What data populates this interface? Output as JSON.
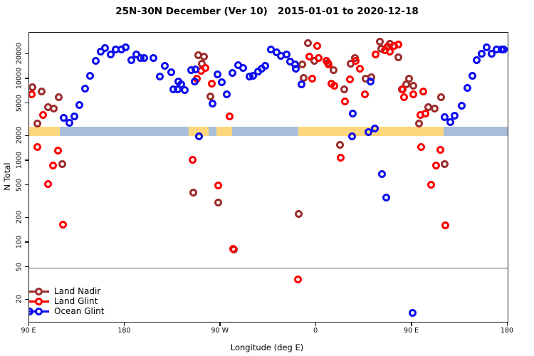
{
  "title": "25N-30N December (Ver 10)   2015-01-01 to 2020-12-18",
  "chart_data": {
    "type": "scatter",
    "title": "25N-30N December (Ver 10)   2015-01-01 to 2020-12-18",
    "xlabel": "Longitude (deg E)",
    "ylabel": "N Total",
    "x_axis": {
      "range": [
        90,
        540
      ],
      "note": "longitude wraps eastward: 90E -> 180 -> 90W -> 0 -> 90E -> 180",
      "ticks": [
        [
          90,
          "90 E"
        ],
        [
          180,
          "180"
        ],
        [
          270,
          "90 W"
        ],
        [
          360,
          "0"
        ],
        [
          450,
          "90 E"
        ],
        [
          540,
          "180"
        ]
      ]
    },
    "y_axis": {
      "scale": "log10",
      "range": [
        10,
        37000
      ],
      "ticks": [
        20000,
        10000,
        5000,
        2000,
        1000,
        500,
        200,
        100,
        50,
        20
      ]
    },
    "reference_line_at": 50,
    "land_ocean_band": {
      "y_level": 2000,
      "land_color": "#FCD77E",
      "ocean_color": "#A9BED9",
      "segments": [
        {
          "from": 90,
          "to": 119,
          "type": "land"
        },
        {
          "from": 119,
          "to": 240,
          "type": "ocean"
        },
        {
          "from": 240,
          "to": 259,
          "type": "land"
        },
        {
          "from": 259,
          "to": 266,
          "type": "ocean"
        },
        {
          "from": 266,
          "to": 281,
          "type": "land"
        },
        {
          "from": 281,
          "to": 343,
          "type": "ocean"
        },
        {
          "from": 343,
          "to": 480,
          "type": "land"
        },
        {
          "from": 480,
          "to": 540,
          "type": "ocean"
        }
      ]
    },
    "series": [
      {
        "name": "Land Nadir",
        "color": "#9C2C2C",
        "points": [
          [
            93,
            8000
          ],
          [
            97.5,
            2870
          ],
          [
            102,
            7000
          ],
          [
            108,
            4490
          ],
          [
            113,
            4400
          ],
          [
            118,
            5980
          ],
          [
            121,
            918
          ],
          [
            244.5,
            414
          ],
          [
            249,
            19400
          ],
          [
            252.5,
            15500
          ],
          [
            254.5,
            18900
          ],
          [
            260.5,
            6150
          ],
          [
            268,
            311
          ],
          [
            282.5,
            82
          ],
          [
            343.5,
            227
          ],
          [
            346.5,
            15200
          ],
          [
            348,
            10400
          ],
          [
            352,
            27700
          ],
          [
            358,
            16700
          ],
          [
            371,
            15600
          ],
          [
            376.5,
            12800
          ],
          [
            382.5,
            1570
          ],
          [
            386.5,
            7500
          ],
          [
            392.5,
            15400
          ],
          [
            396.5,
            18200
          ],
          [
            406.5,
            10200
          ],
          [
            411.5,
            10500
          ],
          [
            419.5,
            28500
          ],
          [
            421,
            23300
          ],
          [
            429.5,
            27200
          ],
          [
            437,
            18600
          ],
          [
            440.5,
            7500
          ],
          [
            444.5,
            8570
          ],
          [
            447,
            10200
          ],
          [
            451.5,
            8350
          ],
          [
            456.5,
            2870
          ],
          [
            465.5,
            4490
          ],
          [
            471.5,
            4400
          ],
          [
            477.5,
            5980
          ],
          [
            481,
            918
          ]
        ]
      },
      {
        "name": "Land Glint",
        "color": "#FF0000",
        "points": [
          [
            92.5,
            6560
          ],
          [
            97.5,
            1470
          ],
          [
            103,
            3670
          ],
          [
            107.5,
            520
          ],
          [
            112.5,
            875
          ],
          [
            117,
            1350
          ],
          [
            121.5,
            165
          ],
          [
            243.5,
            1035
          ],
          [
            248,
            10200
          ],
          [
            251.5,
            12500
          ],
          [
            256,
            13700
          ],
          [
            262,
            8750
          ],
          [
            268,
            497
          ],
          [
            278.5,
            3510
          ],
          [
            282,
            85
          ],
          [
            343,
            36
          ],
          [
            353.5,
            18800
          ],
          [
            356.5,
            10200
          ],
          [
            361,
            25500
          ],
          [
            362.5,
            17900
          ],
          [
            369.5,
            16500
          ],
          [
            371.5,
            15200
          ],
          [
            374,
            8750
          ],
          [
            377,
            8350
          ],
          [
            383,
            1100
          ],
          [
            387,
            5370
          ],
          [
            391.5,
            10000
          ],
          [
            397,
            16700
          ],
          [
            401,
            13300
          ],
          [
            406,
            6560
          ],
          [
            415.5,
            19900
          ],
          [
            424.5,
            22300
          ],
          [
            427,
            24900
          ],
          [
            429,
            21800
          ],
          [
            433.5,
            25500
          ],
          [
            437,
            26300
          ],
          [
            441,
            7410
          ],
          [
            442.5,
            5980
          ],
          [
            451.5,
            6560
          ],
          [
            458,
            3670
          ],
          [
            460.5,
            7010
          ],
          [
            462.5,
            3800
          ],
          [
            458.5,
            1470
          ],
          [
            468,
            516
          ],
          [
            473,
            883
          ],
          [
            477,
            1370
          ],
          [
            481.5,
            163
          ]
        ]
      },
      {
        "name": "Ocean Glint",
        "color": "#0D0DF0",
        "points": [
          [
            90.5,
            14.5
          ],
          [
            122.5,
            3370
          ],
          [
            128,
            2900
          ],
          [
            132.5,
            3510
          ],
          [
            137.5,
            4800
          ],
          [
            142.5,
            7660
          ],
          [
            147.5,
            10900
          ],
          [
            152.5,
            16700
          ],
          [
            157.5,
            21500
          ],
          [
            161.5,
            23800
          ],
          [
            167,
            20100
          ],
          [
            171.5,
            22800
          ],
          [
            176.5,
            23000
          ],
          [
            181,
            24300
          ],
          [
            186,
            17100
          ],
          [
            191,
            19900
          ],
          [
            195,
            18200
          ],
          [
            198,
            18200
          ],
          [
            207,
            17900
          ],
          [
            213,
            10700
          ],
          [
            217.5,
            14400
          ],
          [
            223.5,
            12000
          ],
          [
            225.5,
            7500
          ],
          [
            229.5,
            7410
          ],
          [
            230,
            9350
          ],
          [
            233,
            8570
          ],
          [
            236.5,
            7400
          ],
          [
            242.5,
            12800
          ],
          [
            246.5,
            13000
          ],
          [
            246,
            9400
          ],
          [
            250,
            2015
          ],
          [
            262.5,
            5030
          ],
          [
            267,
            11400
          ],
          [
            271,
            9180
          ],
          [
            276,
            6560
          ],
          [
            281.5,
            11800
          ],
          [
            286.5,
            14900
          ],
          [
            291,
            13700
          ],
          [
            297,
            10700
          ],
          [
            300.5,
            11000
          ],
          [
            305,
            12300
          ],
          [
            308.5,
            13300
          ],
          [
            312,
            14400
          ],
          [
            317.5,
            22800
          ],
          [
            323,
            21200
          ],
          [
            327,
            19100
          ],
          [
            332,
            19900
          ],
          [
            335.5,
            16400
          ],
          [
            340,
            15200
          ],
          [
            341,
            13300
          ],
          [
            346,
            8570
          ],
          [
            393.5,
            2015
          ],
          [
            394.5,
            3800
          ],
          [
            409,
            2260
          ],
          [
            411,
            9350
          ],
          [
            415,
            2510
          ],
          [
            422,
            697
          ],
          [
            425.5,
            356
          ],
          [
            450.5,
            14
          ],
          [
            481,
            3440
          ],
          [
            486,
            3000
          ],
          [
            490,
            3560
          ],
          [
            496.5,
            4740
          ],
          [
            502,
            7820
          ],
          [
            507,
            10900
          ],
          [
            511,
            16900
          ],
          [
            515.5,
            20500
          ],
          [
            520.5,
            24300
          ],
          [
            525,
            20500
          ],
          [
            529.5,
            23000
          ],
          [
            534,
            22800
          ],
          [
            536.5,
            22800
          ]
        ]
      }
    ],
    "legend_position": "bottom-left"
  },
  "legend": {
    "items": [
      {
        "label": "Land Nadir",
        "color": "#9C2C2C"
      },
      {
        "label": "Land Glint",
        "color": "#FF0000"
      },
      {
        "label": "Ocean Glint",
        "color": "#0D0DF0"
      }
    ]
  }
}
